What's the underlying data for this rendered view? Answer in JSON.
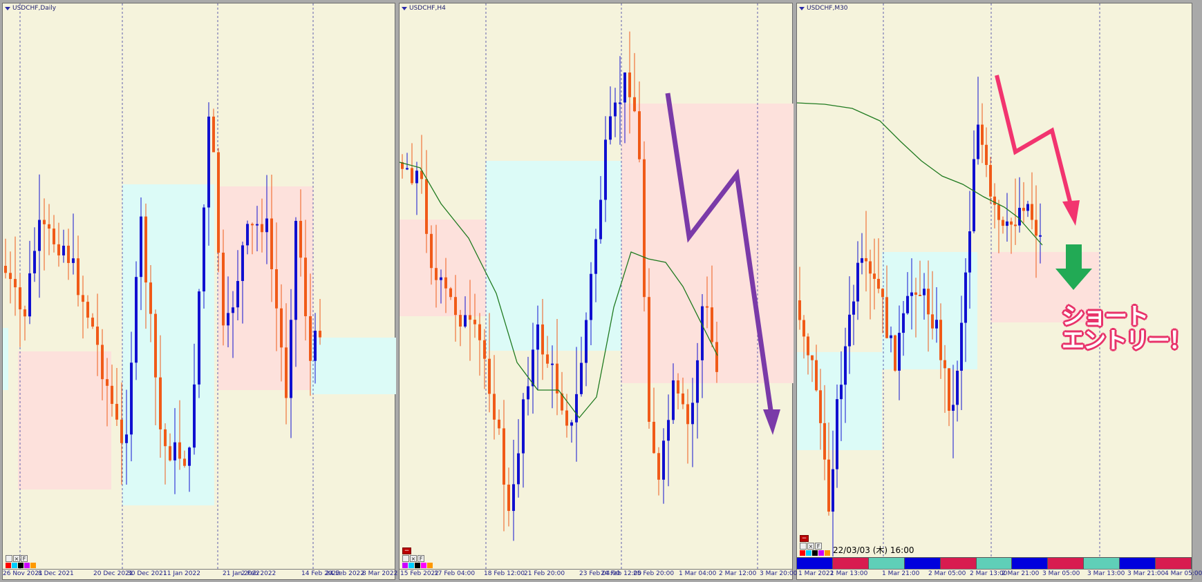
{
  "colors": {
    "bg": "#f5f3dc",
    "bull": "#1010d0",
    "bear": "#f05a18",
    "zone_sell": "#fde1dc",
    "zone_buy": "#dcfbf7",
    "ma": "#1f7a1f",
    "purple": "#7a3aa8",
    "pink": "#f2346f",
    "green": "#22aa55"
  },
  "panels": [
    {
      "title": "USDCHF,Daily",
      "xlabels": [
        "26 Nov 2021",
        "8 Dec 2021",
        "20 Dec 2021",
        "30 Dec 2021",
        "11 Jan 2022",
        "21 Jan 2022",
        "2 Feb 2022",
        "14 Feb 2022",
        "24 Feb 2022",
        "8 Mar 2022"
      ],
      "tool_buttons": [
        "",
        "×",
        "F"
      ]
    },
    {
      "title": "USDCHF,H4",
      "xlabels": [
        "15 Feb 2022",
        "17 Feb 04:00",
        "18 Feb 12:00",
        "21 Feb 20:00",
        "23 Feb 04:00",
        "24 Feb 12:00",
        "25 Feb 20:00",
        "1 Mar 04:00",
        "2 Mar 12:00",
        "3 Mar 20:00"
      ],
      "tool_buttons": [
        "",
        "×",
        "F"
      ],
      "minus_button": "−"
    },
    {
      "title": "USDCHF,M30",
      "xlabels": [
        "1 Mar 2022",
        "1 Mar 13:00",
        "1 Mar 21:00",
        "2 Mar 05:00",
        "2 Mar 13:00",
        "2 Mar 21:00",
        "3 Mar 05:00",
        "3 Mar 13:00",
        "3 Mar 21:00",
        "4 Mar 05:00"
      ],
      "tool_buttons": [
        "",
        "×",
        "F"
      ],
      "minus_button": "−",
      "timestamp": "22/03/03 (木) 16:00",
      "currency_strength_colors": [
        "#0000dd",
        "#d81c50",
        "#5fcfb8",
        "#0000dd",
        "#d81c50",
        "#5fcfb8",
        "#0000dd",
        "#d81c50",
        "#5fcfb8",
        "#0000dd",
        "#d81c50"
      ]
    }
  ],
  "annotation": {
    "line1": "ショート",
    "line2": "エントリー！"
  },
  "icons": [
    "dropdown-triangle-icon",
    "cursor-icon",
    "close-icon",
    "fibonacci-icon",
    "down-arrow-icon",
    "zigzag-arrow-icon"
  ]
}
